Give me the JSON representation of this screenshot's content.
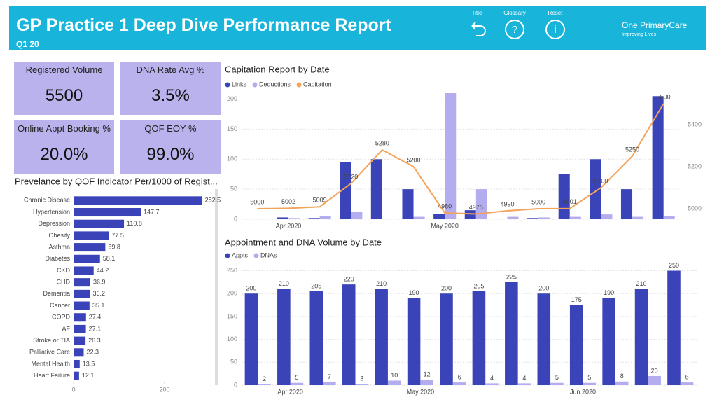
{
  "header": {
    "title": "GP Practice 1 Deep Dive Performance Report",
    "subtitle": "Q1 20",
    "buttons": [
      "Title",
      "Glossary",
      "Reset"
    ],
    "logo": {
      "name": "One PrimaryCare",
      "tagline": "Improving Lives"
    }
  },
  "kpis": [
    {
      "label": "Registered Volume",
      "value": "5500"
    },
    {
      "label": "DNA Rate Avg %",
      "value": "3.5%"
    },
    {
      "label": "Online Appt Booking %",
      "value": "20.0%"
    },
    {
      "label": "QOF EOY %",
      "value": "99.0%"
    }
  ],
  "chart_data": [
    {
      "type": "hbar",
      "title": "Prevelance by QOF Indicator Per/1000 of Regist...",
      "categories": [
        "Chronic Disease",
        "Hypertension",
        "Depression",
        "Obesity",
        "Asthma",
        "Diabetes",
        "CKD",
        "CHD",
        "Dementia",
        "Cancer",
        "COPD",
        "AF",
        "Stroke or TIA",
        "Palliative Care",
        "Mental Health",
        "Heart Failure"
      ],
      "values": [
        282.5,
        147.7,
        110.8,
        77.5,
        69.8,
        58.1,
        44.2,
        36.9,
        36.2,
        35.1,
        27.4,
        27.1,
        26.3,
        22.3,
        13.5,
        12.1
      ],
      "color": "#3a44b8",
      "xlim": [
        0,
        300
      ],
      "xticks": [
        0,
        200
      ]
    },
    {
      "type": "combo",
      "title": "Capitation Report by Date",
      "categories": [
        null,
        "Apr 2020",
        null,
        null,
        null,
        null,
        "May 2020",
        null,
        null,
        null,
        null,
        null,
        null,
        null
      ],
      "series": [
        {
          "name": "Links",
          "color": "#3a44b8",
          "type": "bar",
          "values": [
            1,
            3,
            2,
            95,
            100,
            50,
            9,
            15,
            0,
            2,
            75,
            100,
            50,
            205
          ]
        },
        {
          "name": "Deductions",
          "color": "#b3adf0",
          "type": "bar",
          "values": [
            1,
            2,
            5,
            12,
            0,
            4,
            210,
            50,
            4,
            3,
            4,
            8,
            4,
            5
          ]
        },
        {
          "name": "Capitation",
          "color": "#f4a35a",
          "type": "line",
          "axis": "y2",
          "values": [
            5000,
            5002,
            5009,
            5120,
            5280,
            5200,
            4980,
            4975,
            4990,
            5000,
            5001,
            5100,
            5250,
            5500
          ]
        }
      ],
      "ylim": [
        0,
        210
      ],
      "yticks": [
        0,
        50,
        100,
        150,
        200
      ],
      "y2lim": [
        4950,
        5550
      ],
      "y2ticks": [
        5000,
        5200,
        5400
      ],
      "grid": true
    },
    {
      "type": "bar",
      "title": "Appointment and DNA Volume by Date",
      "categories": [
        null,
        "Apr 2020",
        null,
        null,
        null,
        "May 2020",
        null,
        null,
        null,
        null,
        "Jun 2020",
        null,
        null,
        null
      ],
      "series": [
        {
          "name": "Appts",
          "color": "#3a44b8",
          "values": [
            200,
            210,
            205,
            220,
            210,
            190,
            200,
            205,
            225,
            200,
            175,
            190,
            210,
            250
          ]
        },
        {
          "name": "DNAs",
          "color": "#b3adf0",
          "values": [
            2,
            5,
            7,
            3,
            10,
            12,
            6,
            4,
            4,
            5,
            5,
            8,
            20,
            6
          ]
        }
      ],
      "ylim": [
        0,
        260
      ],
      "yticks": [
        0,
        50,
        100,
        150,
        200,
        250
      ],
      "grid": true
    }
  ]
}
